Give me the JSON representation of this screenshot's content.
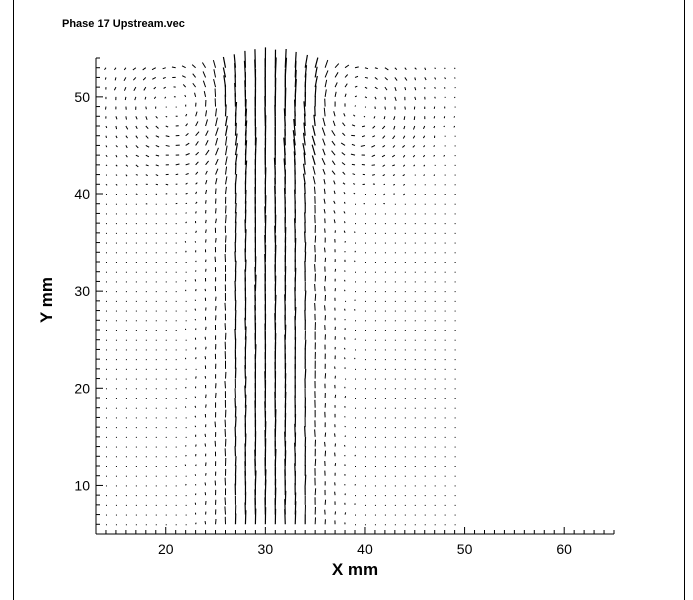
{
  "chart_data": {
    "type": "vector-field",
    "title": "Phase 17 Upstream.vec",
    "xlabel": "X mm",
    "ylabel": "Y mm",
    "xlim": [
      13,
      65
    ],
    "ylim": [
      5,
      54
    ],
    "xticks": [
      20,
      30,
      40,
      50,
      60
    ],
    "yticks": [
      10,
      20,
      30,
      40,
      50
    ],
    "grid": false,
    "legend": "none",
    "vector_color": "#000000",
    "field": {
      "x_range": [
        14,
        49
      ],
      "y_range": [
        6,
        53
      ],
      "spacing": 1,
      "jet_center_x": 30.5,
      "jet_half_width": 3.5,
      "jet_peak_length": 1.9,
      "vortex_centers": [
        {
          "x": 21,
          "y": 49
        },
        {
          "x": 39,
          "y": 49
        }
      ]
    }
  }
}
